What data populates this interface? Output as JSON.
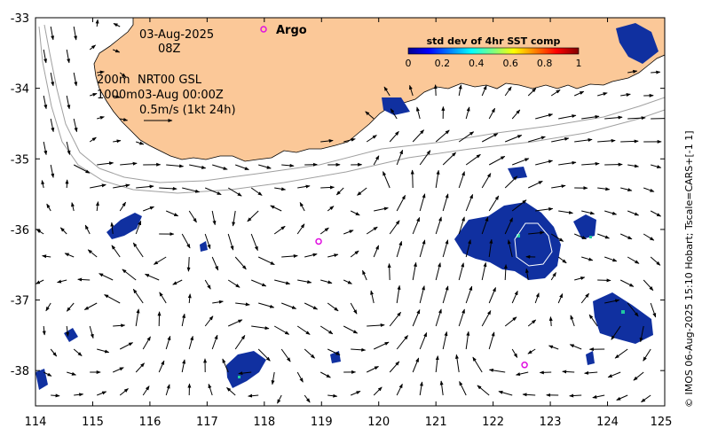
{
  "map": {
    "date": "03-Aug-2025",
    "hour": "08Z",
    "depth_label": "200m",
    "depth_label_2": "1000m",
    "product": "NRT00 GSL",
    "product_time": "03-Aug 00:00Z",
    "scale_label": "0.5m/s (1kt 24h)",
    "argo_label": "Argo",
    "side_text": "© IMOS 06-Aug-2025 15:10 Hobart; Tscale=CARS+[-1 1]",
    "lon_range": [
      114,
      125
    ],
    "lat_range": [
      -38.5,
      -33
    ],
    "x_ticks": [
      "114",
      "115",
      "116",
      "117",
      "118",
      "119",
      "120",
      "121",
      "122",
      "123",
      "124",
      "125"
    ],
    "y_ticks": [
      "-33",
      "-34",
      "-35",
      "-36",
      "-37",
      "-38"
    ],
    "colors": {
      "land": "#fbc898",
      "argo": "#e010e0",
      "arrow": "#000000",
      "isobath": "#a0a0a0",
      "sst_patch": "#1030a0"
    },
    "argo_floats": [
      {
        "lon": 118.95,
        "lat": -36.17
      },
      {
        "lon": 122.55,
        "lat": -37.92
      }
    ]
  },
  "colorbar": {
    "title": "std dev of 4hr SST comp",
    "range": [
      0,
      1
    ],
    "tick_labels": [
      "0",
      "0.2",
      "0.4",
      "0.6",
      "0.8",
      "1"
    ],
    "colormap": "jet"
  }
}
